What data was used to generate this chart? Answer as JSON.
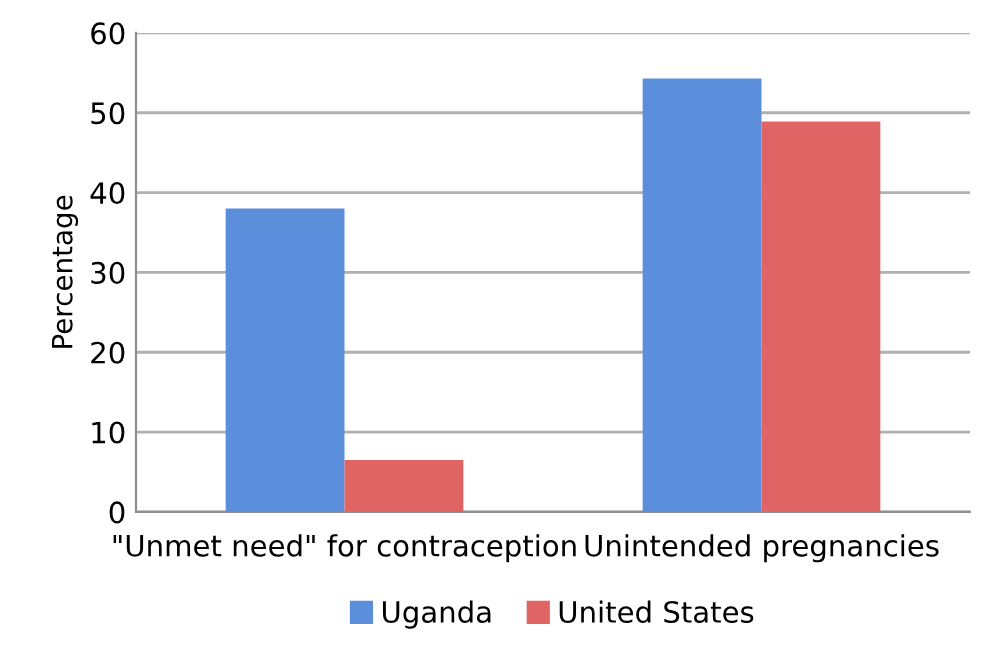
{
  "chart_data": {
    "type": "bar",
    "ylabel": "Percentage",
    "categories": [
      "\"Unmet need\" for contraception",
      "Unintended pregnancies"
    ],
    "series": [
      {
        "name": "Uganda",
        "color": "#5b8fdc",
        "values": [
          38,
          54.3
        ]
      },
      {
        "name": "United States",
        "color": "#e06464",
        "values": [
          6.5,
          48.9
        ]
      }
    ],
    "ylim": [
      0,
      60
    ],
    "yticks": [
      0,
      10,
      20,
      30,
      40,
      50,
      60
    ],
    "grid": "y",
    "legend": "bottom"
  }
}
